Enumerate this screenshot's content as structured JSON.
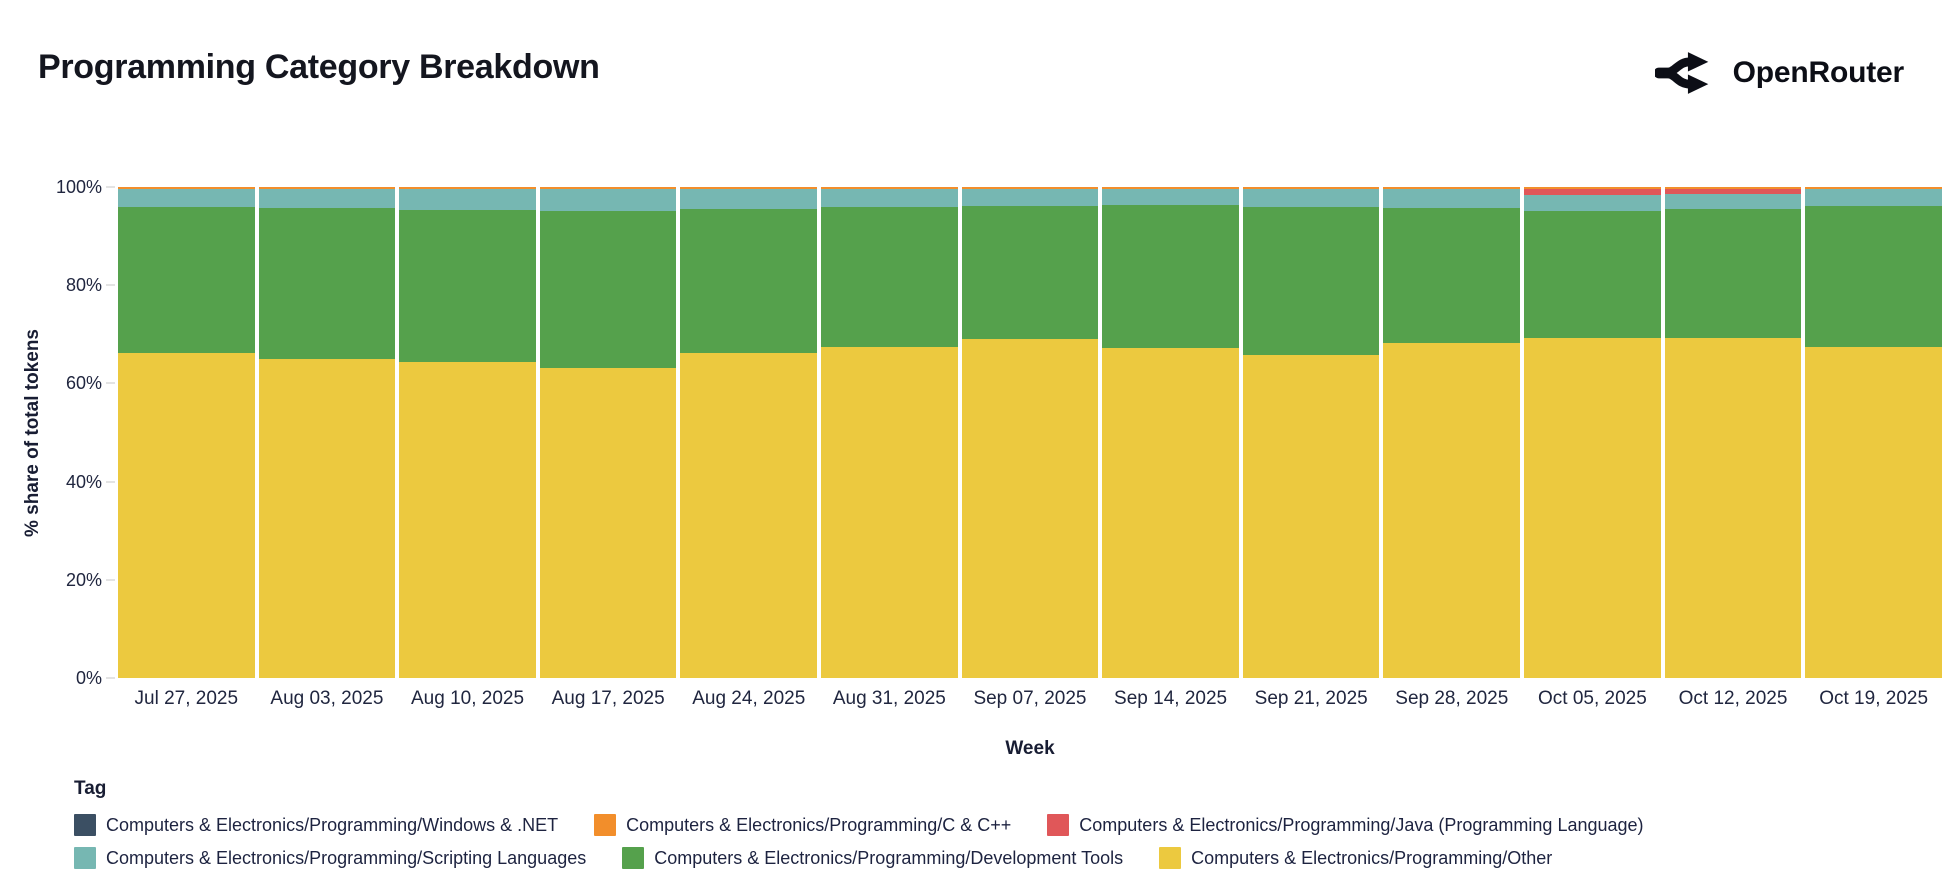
{
  "header": {
    "title": "Programming Category Breakdown",
    "brand": "OpenRouter"
  },
  "chart_data": {
    "type": "bar",
    "stacked": true,
    "normalized_percent": true,
    "title": "Programming Category Breakdown",
    "xlabel": "Week",
    "ylabel": "% share of total tokens",
    "ylim": [
      0,
      100
    ],
    "y_ticks": [
      "0%",
      "20%",
      "40%",
      "60%",
      "80%",
      "100%"
    ],
    "grid": "off",
    "legend_title": "Tag",
    "legend_position": "bottom",
    "categories": [
      "Jul 27, 2025",
      "Aug 03, 2025",
      "Aug 10, 2025",
      "Aug 17, 2025",
      "Aug 24, 2025",
      "Aug 31, 2025",
      "Sep 07, 2025",
      "Sep 14, 2025",
      "Sep 21, 2025",
      "Sep 28, 2025",
      "Oct 05, 2025",
      "Oct 12, 2025",
      "Oct 19, 2025"
    ],
    "series": [
      {
        "key": "windows_net",
        "name": "Computers & Electronics/Programming/Windows & .NET",
        "color": "#3b4f63",
        "patterned_swatch": true,
        "values": [
          0.1,
          0.1,
          0.1,
          0.1,
          0.1,
          0.1,
          0.1,
          0.1,
          0.1,
          0.1,
          0.1,
          0.1,
          0.1
        ]
      },
      {
        "key": "c_cpp",
        "name": "Computers & Electronics/Programming/C & C++",
        "color": "#f28e2b",
        "patterned_swatch": false,
        "values": [
          0.4,
          0.4,
          0.4,
          0.4,
          0.4,
          0.4,
          0.4,
          0.4,
          0.4,
          0.4,
          0.4,
          0.4,
          0.4
        ]
      },
      {
        "key": "java",
        "name": "Computers & Electronics/Programming/Java (Programming Language)",
        "color": "#e05759",
        "patterned_swatch": false,
        "values": [
          0,
          0,
          0,
          0,
          0,
          0,
          0,
          0,
          0,
          0,
          1.2,
          1.0,
          0
        ]
      },
      {
        "key": "scripting",
        "name": "Computers & Electronics/Programming/Scripting Languages",
        "color": "#76b7b2",
        "patterned_swatch": false,
        "values": [
          3.6,
          3.8,
          4.2,
          4.4,
          4.0,
          3.6,
          3.4,
          3.2,
          3.6,
          3.8,
          3.2,
          3.0,
          3.4
        ]
      },
      {
        "key": "dev_tools",
        "name": "Computers & Electronics/Programming/Development Tools",
        "color": "#55a14c",
        "patterned_swatch": false,
        "values": [
          29.7,
          30.7,
          30.9,
          32.0,
          29.3,
          28.5,
          27.1,
          29.0,
          30.2,
          27.4,
          25.9,
          26.3,
          28.6
        ]
      },
      {
        "key": "other",
        "name": "Computers & Electronics/Programming/Other",
        "color": "#ecc93f",
        "patterned_swatch": false,
        "values": [
          66.2,
          65.0,
          64.4,
          63.1,
          66.2,
          67.4,
          69.0,
          67.3,
          65.7,
          68.3,
          69.2,
          69.2,
          67.5
        ]
      }
    ]
  }
}
